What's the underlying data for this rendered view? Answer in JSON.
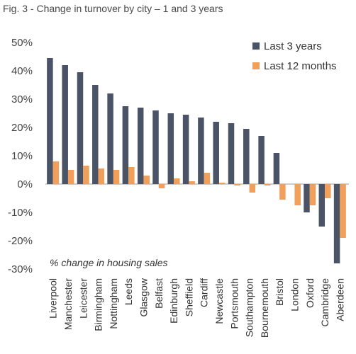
{
  "figure_title": "Fig. 3 - Change in turnover by city – 1 and 3 years",
  "chart_data": {
    "type": "bar",
    "categories": [
      "Liverpool",
      "Manchester",
      "Leicester",
      "Birmingham",
      "Nottingham",
      "Leeds",
      "Glasgow",
      "Belfast",
      "Edinburgh",
      "Sheffield",
      "Cardiff",
      "Newcastle",
      "Portsmouth",
      "Southampton",
      "Bournemouth",
      "Bristol",
      "London",
      "Oxford",
      "Cambridge",
      "Aberdeen"
    ],
    "series": [
      {
        "name": "Last 3 years",
        "color": "#4a5466",
        "values": [
          44.5,
          42,
          39.5,
          35,
          32,
          27.5,
          27,
          26,
          25,
          24.5,
          23.5,
          22,
          21.5,
          19.5,
          17,
          11,
          0,
          -10,
          -15,
          -28
        ]
      },
      {
        "name": "Last 12 months",
        "color": "#f0a05a",
        "values": [
          8,
          5,
          6.5,
          5.5,
          5,
          6,
          3,
          -1.5,
          2,
          1,
          4,
          0.5,
          -0.5,
          -3,
          -0.5,
          -5.5,
          -7.5,
          -7.5,
          -5,
          -19
        ]
      }
    ],
    "y_ticks": [
      "50%",
      "40%",
      "30%",
      "20%",
      "10%",
      "0%",
      "-10%",
      "-20%",
      "-30%"
    ],
    "ylim": [
      -30,
      50
    ],
    "annotation": "% change in housing sales",
    "legend": "top-right",
    "grid": false
  }
}
